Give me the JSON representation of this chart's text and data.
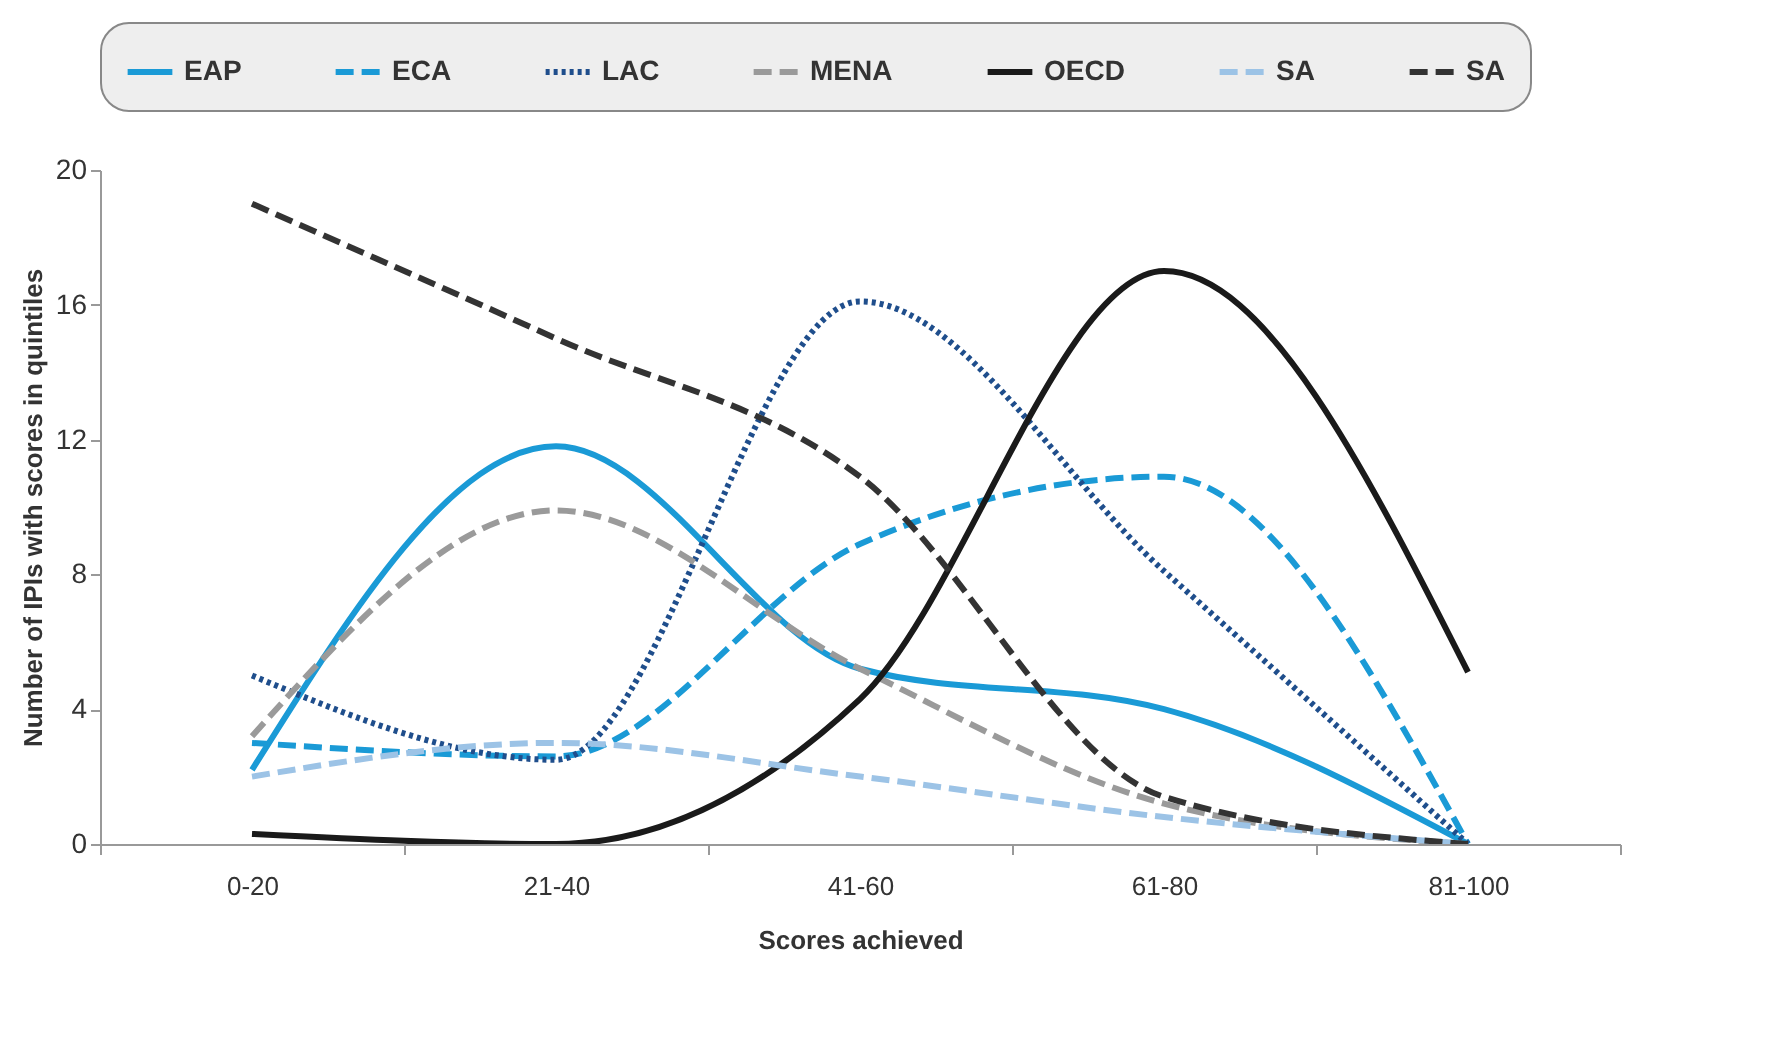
{
  "chart_data": {
    "type": "line",
    "xlabel": "Scores achieved",
    "ylabel": "Number of IPIs with scores in quintiles",
    "categories": [
      "0-20",
      "21-40",
      "41-60",
      "61-80",
      "81-100"
    ],
    "ylim": [
      0,
      20
    ],
    "yticks": [
      0,
      4,
      8,
      12,
      16,
      20
    ],
    "grid": false,
    "legend": "top",
    "series": [
      {
        "name": "EAP",
        "color": "#1a9ad6",
        "line_style": "solid",
        "values": [
          2.2,
          11.8,
          5.2,
          4.0,
          0
        ]
      },
      {
        "name": "ECA",
        "color": "#1a9ad6",
        "line_style": "dashed",
        "values": [
          3,
          2.6,
          8.9,
          10.9,
          0
        ]
      },
      {
        "name": "LAC",
        "color": "#1f4e8c",
        "line_style": "dotted",
        "values": [
          5,
          2.5,
          16.1,
          8.1,
          0
        ]
      },
      {
        "name": "MENA",
        "color": "#9a9a9a",
        "line_style": "dashed",
        "values": [
          3.2,
          9.9,
          5.2,
          1.2,
          0
        ]
      },
      {
        "name": "OECD",
        "color": "#1a1a1a",
        "line_style": "solid",
        "values": [
          0.3,
          0,
          4.3,
          17,
          5.1
        ]
      },
      {
        "name": "SA",
        "color": "#9cc3e6",
        "line_style": "dashed",
        "values": [
          2,
          3,
          2,
          0.8,
          0
        ]
      },
      {
        "name": "SA",
        "color": "#333333",
        "line_style": "dashed",
        "values": [
          19,
          15,
          10.9,
          1.4,
          0
        ]
      }
    ]
  }
}
